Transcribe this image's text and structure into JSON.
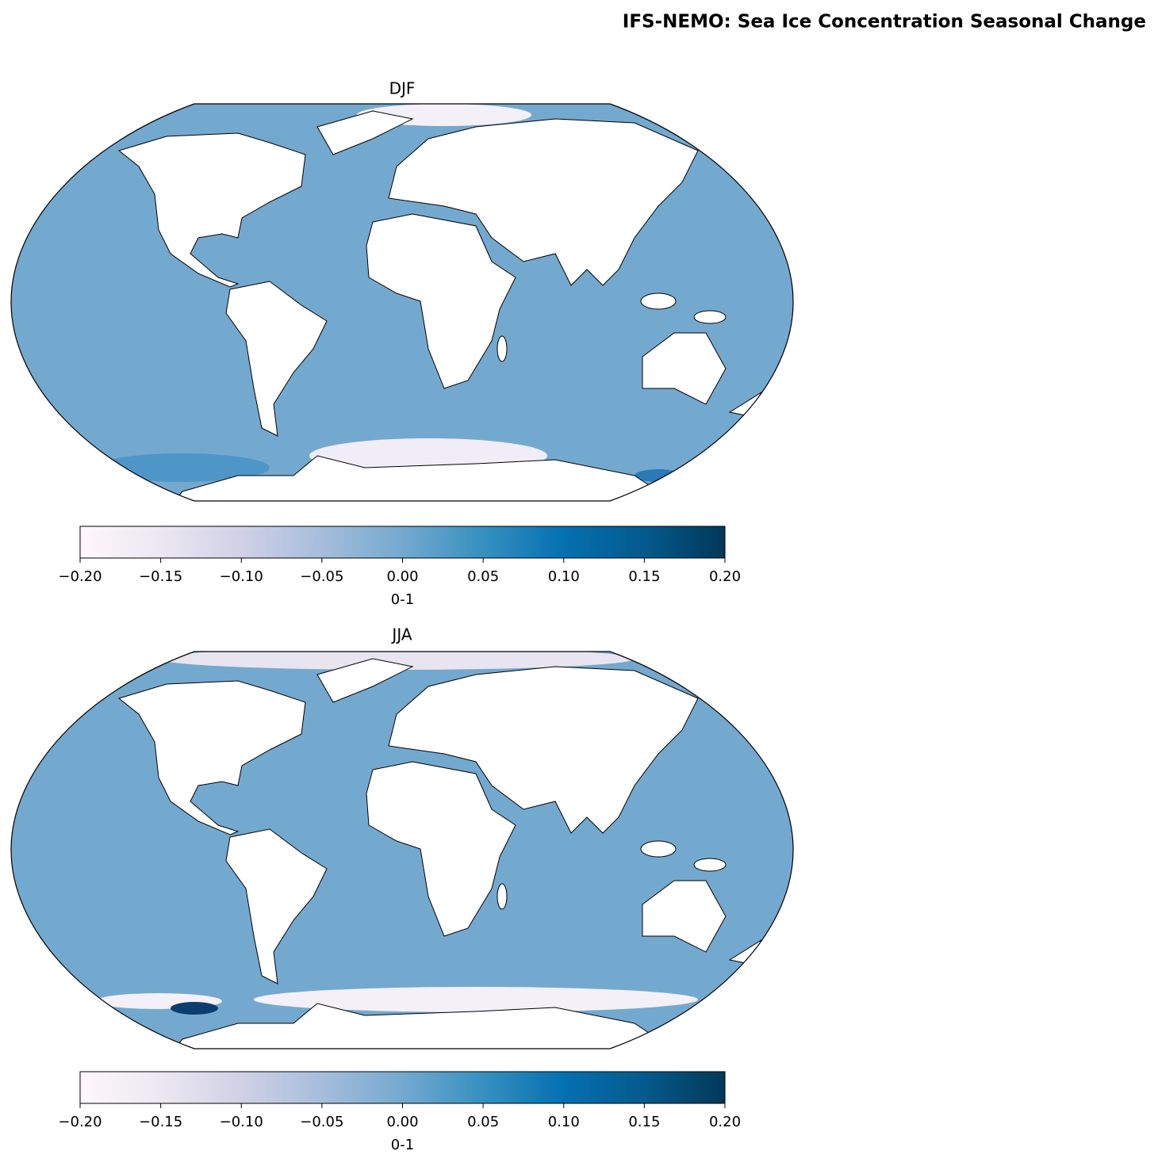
{
  "title": "IFS-NEMO: Sea Ice Concentration Seasonal Change",
  "colormap": [
    "#fff7fb",
    "#ece7f2",
    "#d0d1e6",
    "#a6bddb",
    "#74a9cf",
    "#3690c0",
    "#0570b0",
    "#045a8d",
    "#023858"
  ],
  "panels": [
    {
      "title": "DJF",
      "colorbar": {
        "label": "0-1",
        "lim": [
          -0.2,
          0.2
        ],
        "ticks": [
          {
            "value": -0.2,
            "label": "−0.20"
          },
          {
            "value": -0.15,
            "label": "−0.15"
          },
          {
            "value": -0.1,
            "label": "−0.10"
          },
          {
            "value": -0.05,
            "label": "−0.05"
          },
          {
            "value": 0,
            "label": "0.00"
          },
          {
            "value": 0.05,
            "label": "0.05"
          },
          {
            "value": 0.1,
            "label": "0.10"
          },
          {
            "value": 0.15,
            "label": "0.15"
          },
          {
            "value": 0.2,
            "label": "0.20"
          }
        ]
      }
    },
    {
      "title": "JJA",
      "colorbar": {
        "label": "0-1",
        "lim": [
          -0.2,
          0.2
        ],
        "ticks": [
          {
            "value": -0.2,
            "label": "−0.20"
          },
          {
            "value": -0.15,
            "label": "−0.15"
          },
          {
            "value": -0.1,
            "label": "−0.10"
          },
          {
            "value": -0.05,
            "label": "−0.05"
          },
          {
            "value": 0,
            "label": "0.00"
          },
          {
            "value": 0.05,
            "label": "0.05"
          },
          {
            "value": 0.1,
            "label": "0.10"
          },
          {
            "value": 0.15,
            "label": "0.15"
          },
          {
            "value": 0.2,
            "label": "0.20"
          }
        ]
      }
    }
  ]
}
